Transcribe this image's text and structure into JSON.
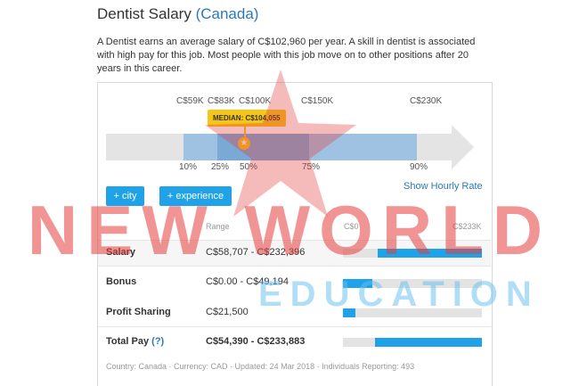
{
  "header": {
    "title": "Dentist Salary",
    "country": "(Canada)",
    "description": "A Dentist earns an average salary of C$102,960 per year. A skill in dentist is associated with high pay for this job. Most people with this job move on to other positions after 20 years in this career."
  },
  "chart": {
    "ticks": [
      "C$59K",
      "C$83K",
      "C$100K",
      "C$150K",
      "C$230K"
    ],
    "percentiles": [
      "10%",
      "25%",
      "50%",
      "75%",
      "90%"
    ],
    "median_label": "MEDIAN: C$104,055"
  },
  "buttons": {
    "city": "+ city",
    "experience": "+ experience"
  },
  "hourly_link": "Show Hourly Rate",
  "table": {
    "range_header": "Range",
    "min_header": "C$0",
    "max_header": "C$233K",
    "rows": [
      {
        "label": "Salary",
        "value": "C$58,707 - C$232,396",
        "bar": {
          "start": 0.25,
          "end": 1.0
        }
      },
      {
        "label": "Bonus",
        "value": "C$0.00 - C$49,194",
        "bar": {
          "start": 0.0,
          "end": 0.21
        }
      },
      {
        "label": "Profit Sharing",
        "value": "C$21,500",
        "bar": {
          "start": 0.0,
          "end": 0.09
        }
      },
      {
        "label": "Total Pay",
        "help": "(?)",
        "value": "C$54,390 - C$233,883",
        "bar": {
          "start": 0.23,
          "end": 1.0
        }
      }
    ]
  },
  "footer": "Country: Canada  ·  Currency: CAD  ·  Updated: 24 Mar 2018  ·  Individuals Reporting: 493",
  "watermark": {
    "line1": "NEW WORLD",
    "line2": "EDUCATION"
  },
  "colors": {
    "accent": "#1fa2e8",
    "median": "#f5c518",
    "link": "#2a7ab8"
  }
}
